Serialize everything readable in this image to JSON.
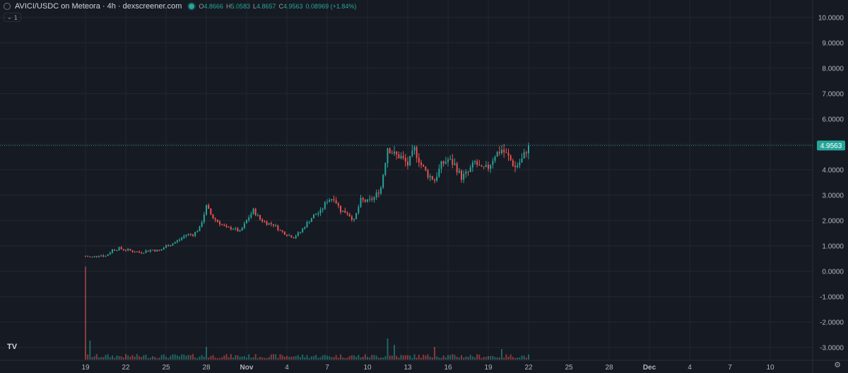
{
  "header": {
    "title": "AVICI/USDC on Meteora · 4h · dexscreener.com",
    "o_label": "O",
    "o_value": "4.8666",
    "h_label": "H",
    "h_value": "5.0583",
    "l_label": "L",
    "l_value": "4.8657",
    "c_label": "C",
    "c_value": "4.9563",
    "change": "0.08969 (+1.84%)",
    "interval_count": "1"
  },
  "colors": {
    "up": "#26a69a",
    "down": "#ef5350",
    "background": "#161a23",
    "grid": "#232733",
    "text": "#b2b5be"
  },
  "icons": {
    "symbol": "symbol-icon",
    "status": "live-dot-icon",
    "chevron": "chevron-down-icon",
    "logo": "tradingview-logo-icon",
    "settings": "gear-icon"
  },
  "chart_data": {
    "type": "candlestick",
    "ylim": [
      -3.2,
      10.3
    ],
    "y_ticks": [
      "10.0000",
      "9.0000",
      "8.0000",
      "7.0000",
      "6.0000",
      "5.0000",
      "4.0000",
      "3.0000",
      "2.0000",
      "1.0000",
      "0.0000",
      "-1.0000",
      "-2.0000",
      "-3.0000"
    ],
    "y_tick_values": [
      10,
      9,
      8,
      7,
      6,
      5,
      4,
      3,
      2,
      1,
      0,
      -1,
      -2,
      -3
    ],
    "x_ticks": [
      "19",
      "22",
      "25",
      "28",
      "Nov",
      "4",
      "7",
      "10",
      "13",
      "16",
      "19",
      "22",
      "25",
      "28",
      "Dec",
      "4",
      "7",
      "10"
    ],
    "x_tick_days": [
      0,
      3,
      6,
      9,
      12,
      15,
      18,
      21,
      24,
      27,
      30,
      33,
      36,
      39,
      42,
      45,
      48,
      51
    ],
    "last_price": "4.9563",
    "last_price_value": 4.9563,
    "series_start_day": 0,
    "candle_hours": 4,
    "close_path": [
      [
        0,
        0.6
      ],
      [
        0.5,
        0.55
      ],
      [
        1,
        0.65
      ],
      [
        1.5,
        0.6
      ],
      [
        2,
        0.85
      ],
      [
        2.5,
        0.9
      ],
      [
        3,
        0.85
      ],
      [
        3.5,
        0.8
      ],
      [
        4,
        0.75
      ],
      [
        4.5,
        0.8
      ],
      [
        5,
        0.85
      ],
      [
        5.5,
        0.8
      ],
      [
        6,
        1.0
      ],
      [
        6.5,
        1.1
      ],
      [
        7,
        1.25
      ],
      [
        7.5,
        1.45
      ],
      [
        8,
        1.45
      ],
      [
        8.5,
        1.7
      ],
      [
        9,
        2.55
      ],
      [
        9.5,
        2.1
      ],
      [
        10,
        1.9
      ],
      [
        10.5,
        1.7
      ],
      [
        11,
        1.7
      ],
      [
        11.5,
        1.55
      ],
      [
        12,
        2.0
      ],
      [
        12.5,
        2.4
      ],
      [
        13,
        2.05
      ],
      [
        13.5,
        1.9
      ],
      [
        14,
        1.85
      ],
      [
        14.5,
        1.6
      ],
      [
        15,
        1.45
      ],
      [
        15.5,
        1.35
      ],
      [
        16,
        1.55
      ],
      [
        16.5,
        1.9
      ],
      [
        17,
        2.2
      ],
      [
        17.5,
        2.35
      ],
      [
        18,
        2.8
      ],
      [
        18.5,
        2.9
      ],
      [
        19,
        2.4
      ],
      [
        19.5,
        2.3
      ],
      [
        20,
        2.0
      ],
      [
        20.5,
        2.8
      ],
      [
        21,
        2.75
      ],
      [
        21.5,
        2.9
      ],
      [
        22,
        3.3
      ],
      [
        22.5,
        4.9
      ],
      [
        23,
        4.6
      ],
      [
        23.5,
        4.5
      ],
      [
        24,
        4.2
      ],
      [
        24.5,
        4.8
      ],
      [
        25,
        4.2
      ],
      [
        25.5,
        3.8
      ],
      [
        26,
        3.6
      ],
      [
        26.5,
        4.2
      ],
      [
        27,
        4.4
      ],
      [
        27.5,
        4.2
      ],
      [
        28,
        3.7
      ],
      [
        28.5,
        3.9
      ],
      [
        29,
        4.3
      ],
      [
        29.5,
        4.0
      ],
      [
        30,
        4.1
      ],
      [
        30.5,
        4.6
      ],
      [
        31,
        4.8
      ],
      [
        31.5,
        4.5
      ],
      [
        32,
        4.1
      ],
      [
        32.5,
        4.4
      ],
      [
        33,
        4.9563
      ]
    ],
    "volume_spikes": [
      [
        0,
        2.2
      ],
      [
        0.4,
        0.45
      ],
      [
        9,
        0.3
      ],
      [
        22.5,
        0.5
      ],
      [
        23,
        0.35
      ],
      [
        26,
        0.3
      ],
      [
        31,
        0.25
      ]
    ]
  }
}
